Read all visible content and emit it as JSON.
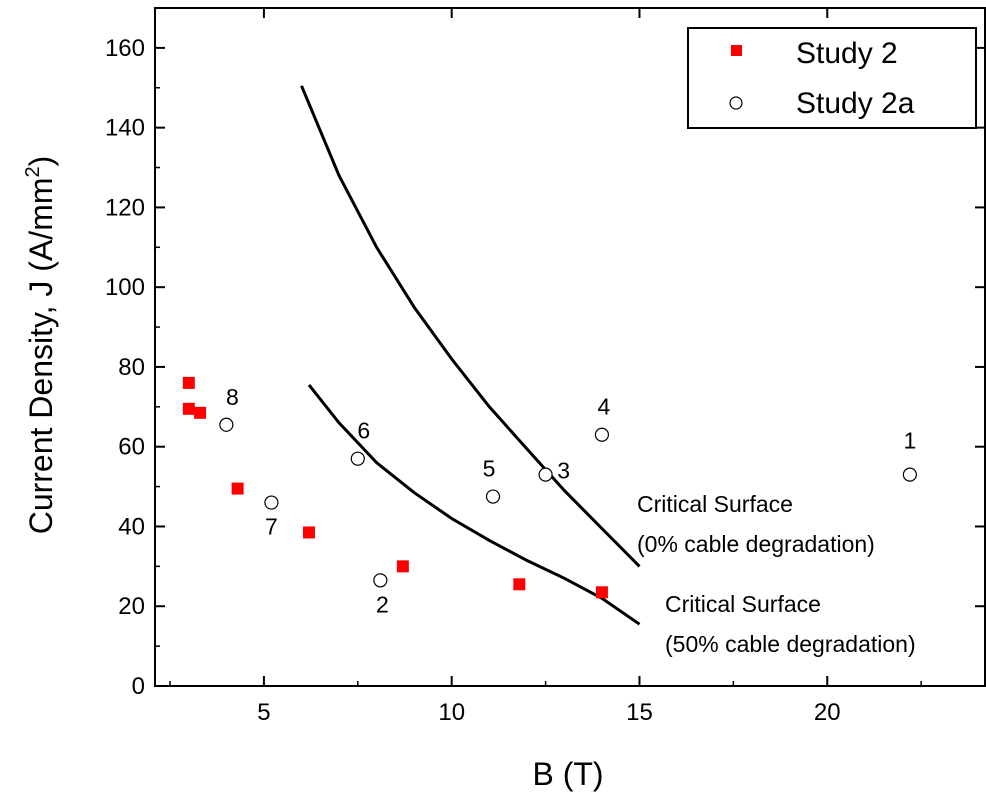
{
  "chart_data": {
    "type": "scatter",
    "xlabel": "B (T)",
    "ylabel": "Current Density, J (A/mm",
    "ylabel_sup": "2",
    "ylabel_end": ")",
    "xlim": [
      2.1,
      24.2
    ],
    "ylim": [
      0,
      170
    ],
    "xticks": [
      5,
      10,
      15,
      20
    ],
    "yticks": [
      0,
      20,
      40,
      60,
      80,
      100,
      120,
      140,
      160
    ],
    "grid": false,
    "legend_position": "top-right",
    "series": [
      {
        "name": "Study 2",
        "marker": "filled-square",
        "color": "#ff0000",
        "points": [
          [
            3.0,
            76
          ],
          [
            3.0,
            69.5
          ],
          [
            3.3,
            68.5
          ],
          [
            4.3,
            49.5
          ],
          [
            6.2,
            38.5
          ],
          [
            8.7,
            30
          ],
          [
            11.8,
            25.5
          ],
          [
            14.0,
            23.5
          ]
        ]
      },
      {
        "name": "Study 2a",
        "marker": "open-circle",
        "color": "#000000",
        "points": [
          {
            "x": 22.2,
            "y": 53,
            "label": "1"
          },
          {
            "x": 8.1,
            "y": 26.5,
            "label": "2"
          },
          {
            "x": 12.5,
            "y": 53,
            "label": "3"
          },
          {
            "x": 14.0,
            "y": 63,
            "label": "4"
          },
          {
            "x": 11.1,
            "y": 47.5,
            "label": "5"
          },
          {
            "x": 7.5,
            "y": 57,
            "label": "6"
          },
          {
            "x": 5.2,
            "y": 46,
            "label": "7"
          },
          {
            "x": 4.0,
            "y": 65.5,
            "label": "8"
          }
        ]
      }
    ],
    "curves": [
      {
        "label_lines": [
          "Critical Surface",
          "(0% cable degradation)"
        ],
        "points": [
          [
            6,
            150.5
          ],
          [
            7,
            128
          ],
          [
            8,
            110
          ],
          [
            9,
            95
          ],
          [
            10,
            82
          ],
          [
            11,
            70
          ],
          [
            12,
            59.5
          ],
          [
            13,
            49
          ],
          [
            14,
            39.5
          ],
          [
            15,
            30
          ]
        ]
      },
      {
        "label_lines": [
          "Critical Surface",
          "(50% cable degradation)"
        ],
        "points": [
          [
            6.2,
            75.5
          ],
          [
            7,
            66
          ],
          [
            8,
            56
          ],
          [
            9,
            48.5
          ],
          [
            10,
            42
          ],
          [
            11,
            36.5
          ],
          [
            12,
            31.5
          ],
          [
            13,
            27
          ],
          [
            14,
            22
          ],
          [
            15,
            15.5
          ]
        ]
      }
    ]
  }
}
